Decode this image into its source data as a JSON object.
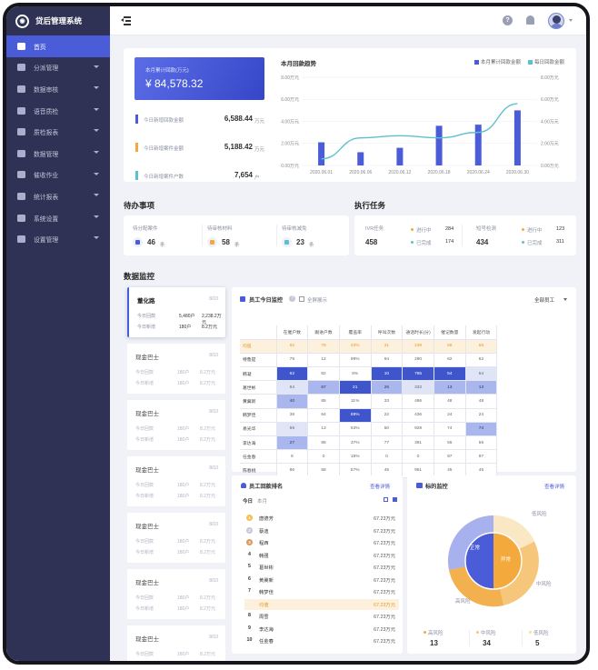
{
  "app": {
    "title": "贷后管理系统"
  },
  "sidebar": {
    "items": [
      {
        "label": "首页",
        "active": true
      },
      {
        "label": "分派管理"
      },
      {
        "label": "数据审核"
      },
      {
        "label": "语音质检"
      },
      {
        "label": "质检报表"
      },
      {
        "label": "数据管理"
      },
      {
        "label": "催收作业"
      },
      {
        "label": "统计报表"
      },
      {
        "label": "系统设置"
      },
      {
        "label": "设置管理"
      }
    ]
  },
  "summary": {
    "total_label": "本月累计回款(万元)",
    "total_value": "¥ 84,578.32",
    "rows": [
      {
        "label": "今日新增回款金额",
        "value": "6,588.44",
        "unit": "万元",
        "color": "#4a5cd8"
      },
      {
        "label": "今日新增案件金额",
        "value": "5,188.42",
        "unit": "万元",
        "color": "#f3a93c"
      },
      {
        "label": "今日新增案件户数",
        "value": "7,654",
        "unit": "户",
        "color": "#5cc1cf"
      }
    ]
  },
  "trend": {
    "title": "本月回款趋势",
    "legend": [
      {
        "name": "本月累计回款金额",
        "color": "#4a5cd8"
      },
      {
        "name": "每日回款金额",
        "color": "#5cc1cf"
      }
    ],
    "left_ticks": [
      "8.00万元",
      "6.00万元",
      "4.00万元",
      "2.00万元",
      "0.00万元"
    ],
    "right_ticks": [
      "8.00万元",
      "6.00万元",
      "4.00万元",
      "2.00万元",
      "0.00万元"
    ],
    "x_labels": [
      "2020.06.01",
      "2020.06.06",
      "2020.06.12",
      "2020.06.18",
      "2020.06.24",
      "2020.06.30"
    ]
  },
  "chart_data": {
    "type": "bar",
    "categories": [
      "2020.06.01",
      "2020.06.06",
      "2020.06.12",
      "2020.06.18",
      "2020.06.24",
      "2020.06.30"
    ],
    "ylim": [
      0,
      8
    ],
    "series": [
      {
        "name": "本月累计回款金额",
        "type": "bar",
        "values": [
          2.1,
          1.2,
          1.6,
          3.6,
          3.7,
          5.0
        ]
      },
      {
        "name": "每日回款金额",
        "type": "line",
        "values": [
          0.6,
          2.5,
          2.7,
          2.5,
          3.0,
          5.6
        ]
      }
    ]
  },
  "todo": {
    "title": "待办事项",
    "items": [
      {
        "label": "待分配案件",
        "value": "46",
        "unit": "条",
        "color": "#4a5cd8"
      },
      {
        "label": "待审核材料",
        "value": "58",
        "unit": "条",
        "color": "#f3a93c"
      },
      {
        "label": "待审核减免",
        "value": "23",
        "unit": "条",
        "color": "#5cc1cf"
      }
    ]
  },
  "tasks": {
    "title": "执行任务",
    "groups": [
      {
        "label": "IVR任务",
        "value": "458",
        "s1": "进行中",
        "n1": "284",
        "s2": "已完成",
        "n2": "174"
      },
      {
        "label": "短号检测",
        "value": "434",
        "s1": "进行中",
        "n1": "123",
        "s2": "已完成",
        "n2": "311"
      }
    ]
  },
  "monitor": {
    "title": "数据监控"
  },
  "people": [
    {
      "name": "董化路",
      "count": "8/10",
      "l1": "今日回款",
      "v1": "5,480户",
      "w1": "2,238.2万元",
      "l2": "今日新增",
      "v2": "180户",
      "w2": "8.2万元",
      "active": true
    },
    {
      "name": "现金巴士",
      "count": "8/10",
      "l1": "今日回款",
      "v1": "180户",
      "w1": "8.2万元",
      "l2": "今日新增",
      "v2": "180户",
      "w2": "8.2万元"
    },
    {
      "name": "现金巴士",
      "count": "8/10",
      "l1": "今日回款",
      "v1": "180户",
      "w1": "8.2万元",
      "l2": "今日新增",
      "v2": "180户",
      "w2": "8.2万元"
    },
    {
      "name": "现金巴士",
      "count": "8/10",
      "l1": "今日回款",
      "v1": "180户",
      "w1": "8.2万元",
      "l2": "今日新增",
      "v2": "180户",
      "w2": "8.2万元"
    },
    {
      "name": "现金巴士",
      "count": "8/10",
      "l1": "今日回款",
      "v1": "180户",
      "w1": "8.2万元",
      "l2": "今日新增",
      "v2": "180户",
      "w2": "8.2万元"
    },
    {
      "name": "现金巴士",
      "count": "8/10",
      "l1": "今日回款",
      "v1": "180户",
      "w1": "8.2万元",
      "l2": "今日新增",
      "v2": "180户",
      "w2": "8.2万元"
    },
    {
      "name": "现金巴士",
      "count": "8/10",
      "l1": "今日回款",
      "v1": "180户",
      "w1": "8.2万元",
      "l2": "今日新增",
      "v2": "180户",
      "w2": "8.2万元"
    }
  ],
  "staff_monitor": {
    "title": "员工今日监控",
    "fullscreen": "全屏展示",
    "filter": "全部员工",
    "headers": [
      "",
      "在催户数",
      "跟进户数",
      "覆盖率",
      "呼叫次数",
      "通话时长(分)",
      "催记数量",
      "发起行动"
    ],
    "rows": [
      {
        "name": "均值",
        "cells": [
          "62",
          "78",
          "33%",
          "31",
          "239",
          "68",
          "68"
        ],
        "lv": [
          0,
          0,
          0,
          0,
          0,
          0,
          0
        ]
      },
      {
        "name": "特鲁提",
        "cells": [
          "79",
          "12",
          "99%",
          "94",
          "290",
          "62",
          "62"
        ],
        "lv": [
          1,
          1,
          1,
          1,
          1,
          1,
          1
        ]
      },
      {
        "name": "韩凝",
        "cells": [
          "62",
          "82",
          "8%",
          "10",
          "765",
          "54",
          "54"
        ],
        "lv": [
          4,
          1,
          1,
          4,
          4,
          4,
          2
        ]
      },
      {
        "name": "葛世彬",
        "cells": [
          "64",
          "67",
          "21",
          "26",
          "333",
          "13",
          "13"
        ],
        "lv": [
          2,
          3,
          4,
          3,
          2,
          3,
          3
        ]
      },
      {
        "name": "黄冀新",
        "cells": [
          "40",
          "85",
          "11%",
          "33",
          "486",
          "48",
          "48"
        ],
        "lv": [
          3,
          1,
          1,
          1,
          1,
          1,
          1
        ]
      },
      {
        "name": "韩梦佳",
        "cells": [
          "39",
          "64",
          "89%",
          "22",
          "436",
          "24",
          "24"
        ],
        "lv": [
          1,
          1,
          4,
          1,
          1,
          1,
          1
        ]
      },
      {
        "name": "易光华",
        "cells": [
          "59",
          "13",
          "53%",
          "50",
          "929",
          "74",
          "74"
        ],
        "lv": [
          2,
          1,
          1,
          1,
          1,
          1,
          3
        ]
      },
      {
        "name": "李达海",
        "cells": [
          "27",
          "86",
          "37%",
          "77",
          "391",
          "56",
          "56"
        ],
        "lv": [
          3,
          1,
          1,
          1,
          1,
          1,
          1
        ]
      },
      {
        "name": "任金春",
        "cells": [
          "9",
          "0",
          "15%",
          "0",
          "0",
          "97",
          "97"
        ],
        "lv": [
          1,
          1,
          1,
          1,
          1,
          1,
          1
        ]
      },
      {
        "name": "陈春桃",
        "cells": [
          "86",
          "58",
          "57%",
          "45",
          "961",
          "45",
          "45"
        ],
        "lv": [
          1,
          1,
          1,
          1,
          1,
          1,
          1
        ]
      }
    ]
  },
  "ranking": {
    "title": "员工回款排名",
    "more": "查看详情",
    "tab_today": "今日",
    "tab_month": "本月",
    "rows": [
      {
        "rank": "1",
        "name": "唐德芳",
        "value": "67.23万元"
      },
      {
        "rank": "2",
        "name": "蔡迪",
        "value": "67.23万元"
      },
      {
        "rank": "3",
        "name": "程西",
        "value": "67.23万元"
      },
      {
        "rank": "4",
        "name": "韩强",
        "value": "67.23万元"
      },
      {
        "rank": "5",
        "name": "葛世彬",
        "value": "67.23万元"
      },
      {
        "rank": "6",
        "name": "黄冀新",
        "value": "67.23万元"
      },
      {
        "rank": "7",
        "name": "韩梦佳",
        "value": "67.23万元"
      },
      {
        "rank": "",
        "name": "均值",
        "value": "67.23万元",
        "highlight": true
      },
      {
        "rank": "8",
        "name": "周雪",
        "value": "67.23万元"
      },
      {
        "rank": "9",
        "name": "李达海",
        "value": "67.23万元"
      },
      {
        "rank": "10",
        "name": "任金春",
        "value": "67.23万元"
      }
    ]
  },
  "target": {
    "title": "标的监控",
    "more": "查看详情",
    "labels": {
      "high": "高风险",
      "mid": "中风险",
      "low": "低风险",
      "normal": "正常",
      "abnormal": "异常"
    },
    "stats": [
      {
        "label": "高风险",
        "value": "13",
        "color": "#f3a93c"
      },
      {
        "label": "中风险",
        "value": "34",
        "color": "#f6c67a"
      },
      {
        "label": "低风险",
        "value": "5",
        "color": "#f8dda8"
      }
    ]
  }
}
